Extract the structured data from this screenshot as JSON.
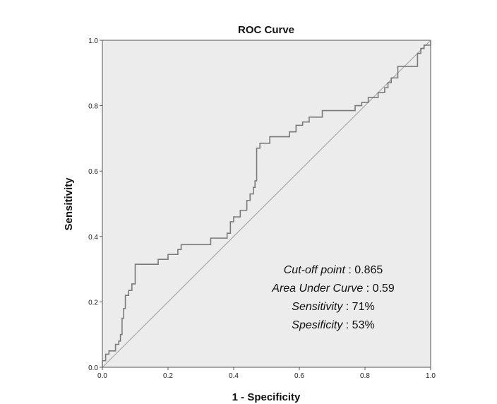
{
  "chart_data": {
    "type": "line",
    "title": "ROC Curve",
    "xlabel": "1 - Specificity",
    "ylabel": "Sensitivity",
    "xlim": [
      0,
      1
    ],
    "ylim": [
      0,
      1
    ],
    "x_ticks": [
      "0.0",
      "0.2",
      "0.4",
      "0.6",
      "0.8",
      "1.0"
    ],
    "y_ticks": [
      "0.0",
      "0.2",
      "0.4",
      "0.6",
      "0.8",
      "1.0"
    ],
    "grid": false,
    "colors": {
      "roc_line": "#7a7a7a",
      "reference_line": "#a8a8a8",
      "plot_background": "#ececec",
      "frame": "#555555"
    },
    "series": [
      {
        "role": "roc_curve",
        "x": [
          0.0,
          0.0,
          0.01,
          0.01,
          0.02,
          0.02,
          0.04,
          0.04,
          0.05,
          0.05,
          0.055,
          0.055,
          0.06,
          0.06,
          0.065,
          0.065,
          0.07,
          0.07,
          0.08,
          0.08,
          0.09,
          0.09,
          0.1,
          0.1,
          0.17,
          0.17,
          0.2,
          0.2,
          0.23,
          0.23,
          0.24,
          0.24,
          0.33,
          0.33,
          0.38,
          0.38,
          0.39,
          0.39,
          0.4,
          0.4,
          0.42,
          0.42,
          0.44,
          0.44,
          0.45,
          0.45,
          0.46,
          0.46,
          0.465,
          0.465,
          0.47,
          0.47,
          0.48,
          0.48,
          0.51,
          0.51,
          0.57,
          0.57,
          0.59,
          0.59,
          0.61,
          0.61,
          0.63,
          0.63,
          0.67,
          0.67,
          0.77,
          0.77,
          0.79,
          0.79,
          0.81,
          0.81,
          0.84,
          0.84,
          0.86,
          0.86,
          0.87,
          0.87,
          0.88,
          0.88,
          0.9,
          0.9,
          0.92,
          0.92,
          0.96,
          0.96,
          0.97,
          0.97,
          0.98,
          0.98,
          1.0,
          1.0
        ],
        "y": [
          0.0,
          0.02,
          0.02,
          0.04,
          0.04,
          0.05,
          0.05,
          0.07,
          0.07,
          0.08,
          0.08,
          0.1,
          0.1,
          0.15,
          0.15,
          0.18,
          0.18,
          0.22,
          0.22,
          0.235,
          0.235,
          0.255,
          0.255,
          0.315,
          0.315,
          0.33,
          0.33,
          0.345,
          0.345,
          0.36,
          0.36,
          0.375,
          0.375,
          0.395,
          0.395,
          0.41,
          0.41,
          0.445,
          0.445,
          0.46,
          0.46,
          0.48,
          0.48,
          0.51,
          0.51,
          0.53,
          0.53,
          0.55,
          0.55,
          0.57,
          0.57,
          0.67,
          0.67,
          0.685,
          0.685,
          0.705,
          0.705,
          0.72,
          0.72,
          0.74,
          0.74,
          0.75,
          0.75,
          0.765,
          0.765,
          0.785,
          0.785,
          0.8,
          0.8,
          0.81,
          0.81,
          0.825,
          0.825,
          0.84,
          0.84,
          0.855,
          0.855,
          0.87,
          0.87,
          0.885,
          0.885,
          0.92,
          0.92,
          0.92,
          0.92,
          0.96,
          0.96,
          0.975,
          0.975,
          0.985,
          0.985,
          1.0
        ]
      },
      {
        "role": "reference_line",
        "x": [
          0,
          1
        ],
        "y": [
          0,
          1
        ]
      }
    ],
    "annotations": [
      {
        "label": "Cut-off point",
        "value": " : 0.865"
      },
      {
        "label": "Area Under Curve",
        "value": " : 0.59"
      },
      {
        "label": "Sensitivity",
        "value": " : 71%"
      },
      {
        "label": "Spesificity",
        "value": " : 53%"
      }
    ]
  }
}
